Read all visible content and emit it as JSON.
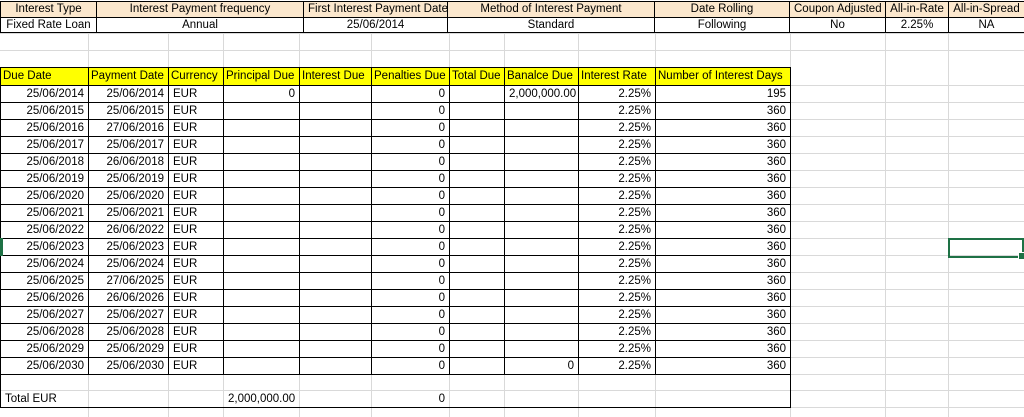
{
  "loan_summary": {
    "headers": [
      "Interest Type",
      "Interest Payment frequency",
      "First Interest Payment Date",
      "Method of Interest Payment",
      "Date Rolling",
      "Coupon Adjusted",
      "All-in-Rate",
      "All-in-Spread"
    ],
    "values": [
      "Fixed Rate Loan",
      "Annual",
      "25/06/2014",
      "Standard",
      "Following",
      "No",
      "2.25%",
      "NA"
    ]
  },
  "schedule": {
    "headers": [
      "Due Date",
      "Payment Date",
      "Currency",
      "Principal Due",
      "Interest Due",
      "Penalties Due",
      "Total Due",
      "Banalce Due",
      "Interest Rate",
      "Number of Interest Days"
    ],
    "rows": [
      [
        "25/06/2014",
        "25/06/2014",
        "EUR",
        "0",
        "",
        "0",
        "",
        "2,000,000.00",
        "2.25%",
        "195"
      ],
      [
        "25/06/2015",
        "25/06/2015",
        "EUR",
        "",
        "",
        "0",
        "",
        "",
        "2.25%",
        "360"
      ],
      [
        "25/06/2016",
        "27/06/2016",
        "EUR",
        "",
        "",
        "0",
        "",
        "",
        "2.25%",
        "360"
      ],
      [
        "25/06/2017",
        "25/06/2017",
        "EUR",
        "",
        "",
        "0",
        "",
        "",
        "2.25%",
        "360"
      ],
      [
        "25/06/2018",
        "26/06/2018",
        "EUR",
        "",
        "",
        "0",
        "",
        "",
        "2.25%",
        "360"
      ],
      [
        "25/06/2019",
        "25/06/2019",
        "EUR",
        "",
        "",
        "0",
        "",
        "",
        "2.25%",
        "360"
      ],
      [
        "25/06/2020",
        "25/06/2020",
        "EUR",
        "",
        "",
        "0",
        "",
        "",
        "2.25%",
        "360"
      ],
      [
        "25/06/2021",
        "25/06/2021",
        "EUR",
        "",
        "",
        "0",
        "",
        "",
        "2.25%",
        "360"
      ],
      [
        "25/06/2022",
        "26/06/2022",
        "EUR",
        "",
        "",
        "0",
        "",
        "",
        "2.25%",
        "360"
      ],
      [
        "25/06/2023",
        "25/06/2023",
        "EUR",
        "",
        "",
        "0",
        "",
        "",
        "2.25%",
        "360"
      ],
      [
        "25/06/2024",
        "25/06/2024",
        "EUR",
        "",
        "",
        "0",
        "",
        "",
        "2.25%",
        "360"
      ],
      [
        "25/06/2025",
        "27/06/2025",
        "EUR",
        "",
        "",
        "0",
        "",
        "",
        "2.25%",
        "360"
      ],
      [
        "25/06/2026",
        "26/06/2026",
        "EUR",
        "",
        "",
        "0",
        "",
        "",
        "2.25%",
        "360"
      ],
      [
        "25/06/2027",
        "25/06/2027",
        "EUR",
        "",
        "",
        "0",
        "",
        "",
        "2.25%",
        "360"
      ],
      [
        "25/06/2028",
        "25/06/2028",
        "EUR",
        "",
        "",
        "0",
        "",
        "",
        "2.25%",
        "360"
      ],
      [
        "25/06/2029",
        "25/06/2029",
        "EUR",
        "",
        "",
        "0",
        "",
        "",
        "2.25%",
        "360"
      ],
      [
        "25/06/2030",
        "25/06/2030",
        "EUR",
        "",
        "",
        "0",
        "",
        "0",
        "2.25%",
        "360"
      ]
    ],
    "total": {
      "label": "Total EUR",
      "principal_due": "2,000,000.00",
      "penalties_due": "0"
    }
  },
  "colors": {
    "summary_header_fill": "#FBE7CD",
    "schedule_header_fill": "#FFFF00",
    "selection_green": "#1E7145",
    "gridline": "#D9D9D9",
    "border": "#000000"
  }
}
